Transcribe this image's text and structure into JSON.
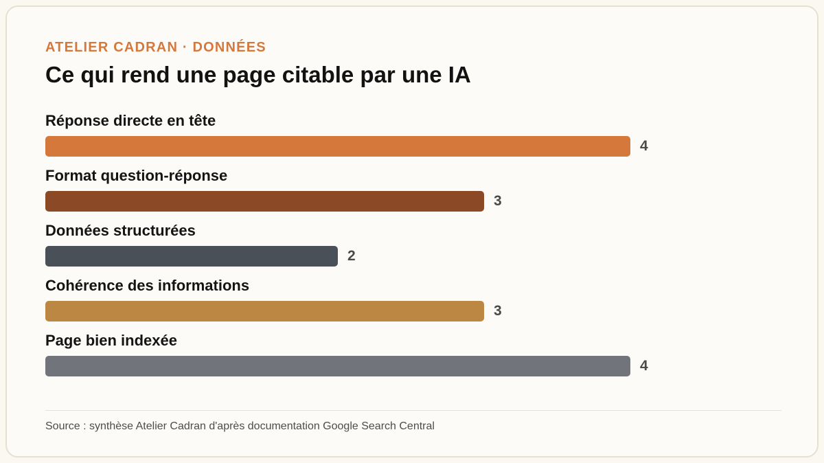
{
  "header": {
    "kicker": "ATELIER CADRAN · DONNÉES",
    "title": "Ce qui rend une page citable par une IA"
  },
  "chart_data": {
    "type": "bar",
    "orientation": "horizontal",
    "categories": [
      "Réponse directe en tête",
      "Format question-réponse",
      "Données structurées",
      "Cohérence des informations",
      "Page bien indexée"
    ],
    "values": [
      4,
      3,
      2,
      3,
      4
    ],
    "colors": [
      "#d4783c",
      "#8b4926",
      "#4a5058",
      "#bc8742",
      "#71747b"
    ],
    "xlim": [
      0,
      4
    ],
    "grid": false,
    "legend": "none"
  },
  "footer": {
    "source": "Source : synthèse Atelier Cadran d'après documentation Google Search Central"
  }
}
